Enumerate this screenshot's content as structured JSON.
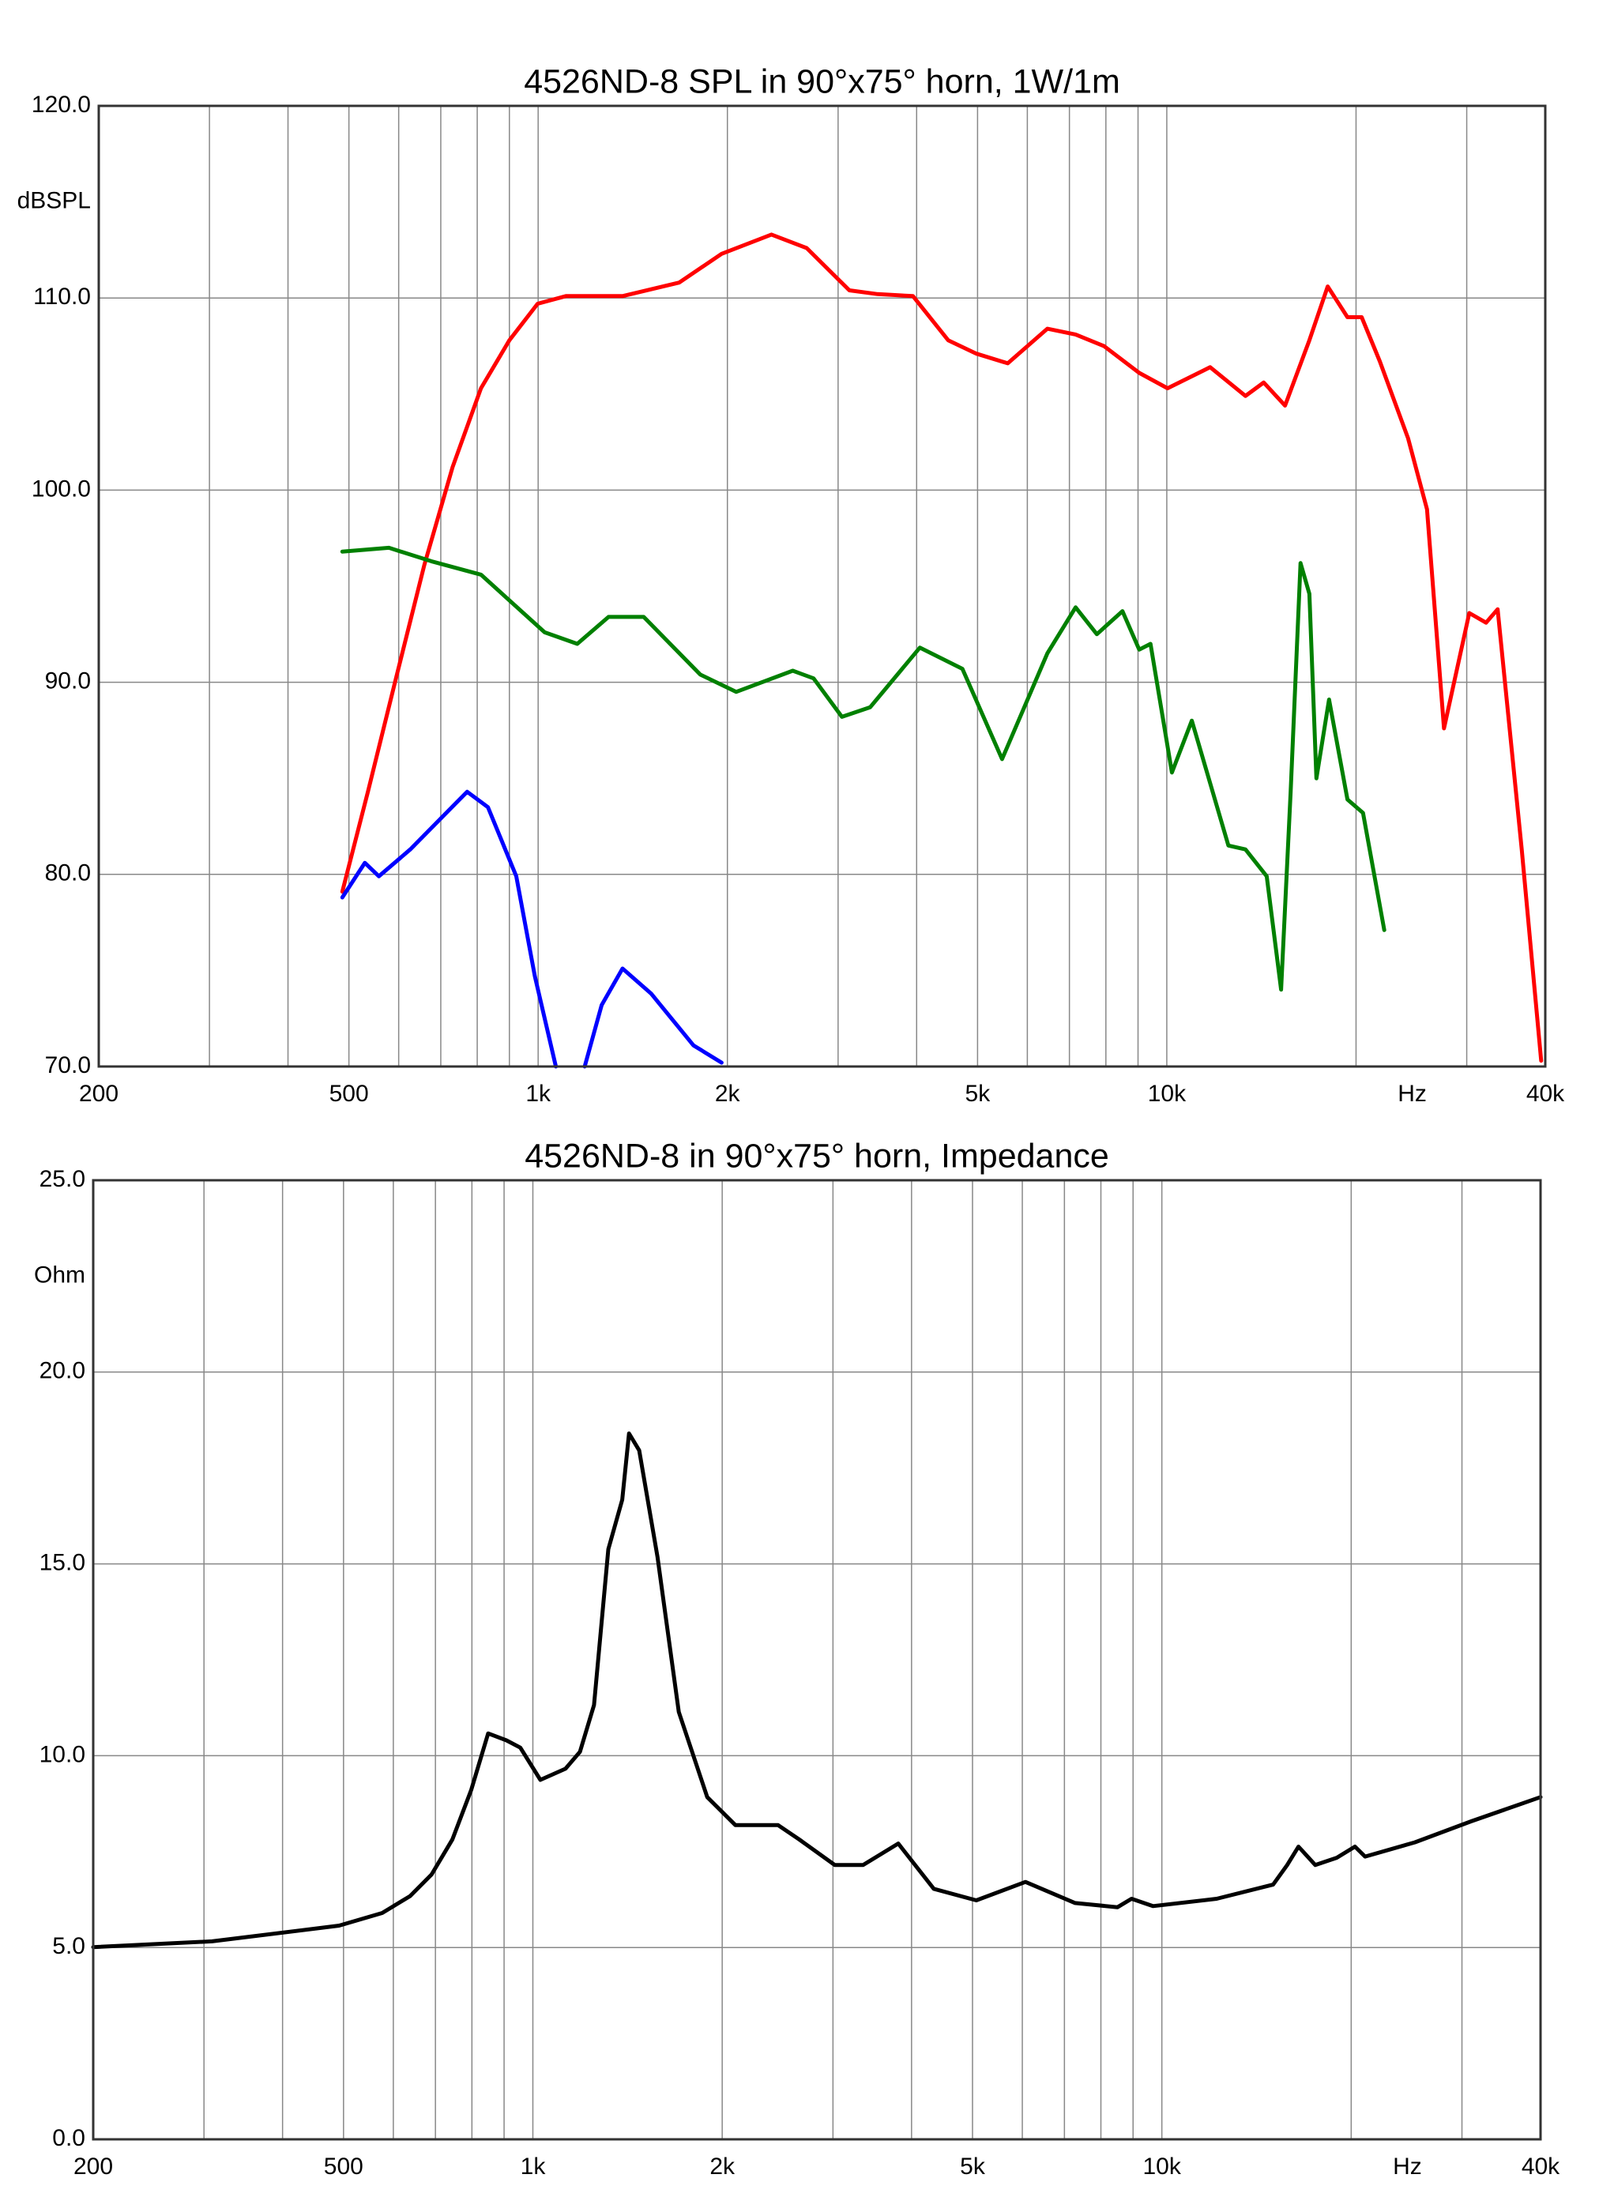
{
  "charts": [
    {
      "chart_data": {
        "type": "line",
        "title": "4526ND-8 SPL in 90°x75° horn, 1W/1m",
        "y_label": "dBSPL",
        "x_label": "Hz",
        "log_x": true,
        "grid": true,
        "xlim": [
          200,
          40000
        ],
        "xticks": [
          200,
          500,
          {
            "value": 1000,
            "label": "1k"
          },
          {
            "value": 2000,
            "label": "2k"
          },
          {
            "value": 5000,
            "label": "5k"
          },
          {
            "value": 10000,
            "label": "10k"
          },
          {
            "value": 40000,
            "label": "40k"
          }
        ],
        "xminor": [
          300,
          400,
          600,
          700,
          800,
          900,
          3000,
          4000,
          6000,
          7000,
          8000,
          9000,
          20000,
          30000
        ],
        "ylim": [
          70,
          120
        ],
        "yticks": [
          {
            "value": 70,
            "label": "70.0"
          },
          {
            "value": 80,
            "label": "80.0"
          },
          {
            "value": 90,
            "label": "90.0"
          },
          {
            "value": 100,
            "label": "100.0"
          },
          {
            "value": 110,
            "label": "110.0"
          },
          {
            "value": 120,
            "label": "120.0"
          }
        ],
        "series": [
          {
            "color": "#ff0000",
            "x": [
              488,
              536,
              594,
              659,
              731,
              811,
              900,
              998,
              1107,
              1362,
              1676,
              1958,
              2350,
              2674,
              3126,
              3467,
              3946,
              4490,
              4980,
              5584,
              6456,
              7160,
              7942,
              9040,
              10027,
              11720,
              13340,
              14260,
              15420,
              16860,
              18030,
              19380,
              20420,
              21820,
              24200,
              25940,
              27600,
              30280,
              32200,
              33600,
              36700,
              39400
            ],
            "values": [
              79.1,
              84.3,
              90.2,
              96.1,
              101.2,
              105.3,
              107.8,
              109.7,
              110.1,
              110.1,
              110.8,
              112.3,
              113.3,
              112.6,
              110.4,
              110.2,
              110.1,
              107.8,
              107.1,
              106.6,
              108.4,
              108.1,
              107.5,
              106.1,
              105.3,
              106.4,
              104.9,
              105.6,
              104.4,
              107.8,
              110.6,
              109.0,
              109.0,
              106.7,
              102.7,
              99.0,
              87.6,
              93.6,
              93.1,
              93.8,
              81.3,
              70.3
            ]
          },
          {
            "color": "#008000",
            "x": [
              488,
              579,
              676,
              811,
              1024,
              1154,
              1294,
              1472,
              1811,
              2065,
              2541,
              2742,
              3042,
              3374,
              4047,
              4730,
              5470,
              6456,
              7160,
              7740,
              8500,
              9040,
              9420,
              10190,
              10960,
              12530,
              13340,
              14420,
              15200,
              15740,
              16320,
              16860,
              17300,
              18120,
              19380,
              20520,
              22180
            ],
            "values": [
              96.8,
              97.0,
              96.3,
              95.6,
              92.6,
              92.0,
              93.4,
              93.4,
              90.4,
              89.5,
              90.6,
              90.2,
              88.2,
              88.7,
              91.8,
              90.7,
              86.0,
              91.5,
              93.9,
              92.5,
              93.7,
              91.7,
              92.0,
              85.3,
              88.0,
              81.5,
              81.3,
              79.9,
              74.0,
              84.3,
              96.2,
              94.6,
              85.0,
              89.1,
              83.9,
              83.2,
              77.1
            ]
          },
          {
            "color": "#0000ff",
            "x": [
              488,
              530,
              558,
              626,
              771,
              832,
              923,
              988,
              1067,
              null,
              1186,
              1262,
              1362,
              1512,
              1766,
              1958
            ],
            "values": [
              78.8,
              80.6,
              79.9,
              81.3,
              84.3,
              83.5,
              79.9,
              74.7,
              70.0,
              null,
              70.0,
              73.2,
              75.1,
              73.8,
              71.1,
              70.2
            ]
          }
        ]
      }
    },
    {
      "chart_data": {
        "type": "line",
        "title": "4526ND-8 in 90°x75° horn, Impedance",
        "y_label": "Ohm",
        "x_label": "Hz",
        "log_x": true,
        "grid": true,
        "xlim": [
          200,
          40000
        ],
        "xticks": [
          200,
          500,
          {
            "value": 1000,
            "label": "1k"
          },
          {
            "value": 2000,
            "label": "2k"
          },
          {
            "value": 5000,
            "label": "5k"
          },
          {
            "value": 10000,
            "label": "10k"
          },
          {
            "value": 40000,
            "label": "40k"
          }
        ],
        "xminor": [
          300,
          400,
          600,
          700,
          800,
          900,
          3000,
          4000,
          6000,
          7000,
          8000,
          9000,
          20000,
          30000
        ],
        "ylim": [
          0,
          25
        ],
        "yticks": [
          {
            "value": 0,
            "label": "0.0"
          },
          {
            "value": 5,
            "label": "5.0"
          },
          {
            "value": 10,
            "label": "10.0"
          },
          {
            "value": 15,
            "label": "15.0"
          },
          {
            "value": 20,
            "label": "20.0"
          },
          {
            "value": 25,
            "label": "25.0"
          }
        ],
        "series": [
          {
            "color": "#000000",
            "x": [
              200,
              309,
              492,
              576,
              638,
              690,
              745,
              798,
              849,
              908,
              955,
              1028,
              1127,
              1188,
              1251,
              1318,
              1387,
              1422,
              1476,
              1578,
              1706,
              1893,
              2099,
              2454,
              2650,
              3020,
              3350,
              3810,
              4340,
              5070,
              6070,
              7280,
              8500,
              8950,
              9680,
              12220,
              15030,
              15820,
              16490,
              17540,
              18970,
              20280,
              21040,
              25240,
              31050,
              40000
            ],
            "values": [
              5.01,
              5.16,
              5.57,
              5.9,
              6.34,
              6.9,
              7.82,
              9.11,
              10.58,
              10.4,
              10.21,
              9.37,
              9.66,
              10.1,
              11.32,
              15.38,
              16.67,
              18.4,
              17.96,
              15.19,
              11.14,
              8.92,
              8.19,
              8.19,
              7.82,
              7.15,
              7.15,
              7.71,
              6.53,
              6.23,
              6.71,
              6.16,
              6.05,
              6.27,
              6.08,
              6.27,
              6.64,
              7.15,
              7.63,
              7.15,
              7.34,
              7.63,
              7.37,
              7.74,
              8.29,
              8.92
            ]
          }
        ]
      }
    }
  ]
}
